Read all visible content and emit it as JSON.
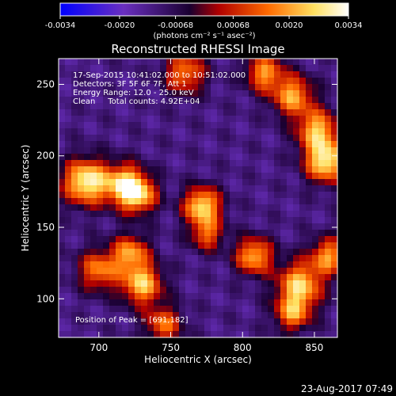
{
  "chart_data": {
    "type": "heatmap",
    "title": "Reconstructed RHESSI Image",
    "xlabel": "Heliocentric X (arcsec)",
    "ylabel": "Heliocentric Y (arcsec)",
    "xlim": [
      672,
      866
    ],
    "ylim": [
      73,
      268
    ],
    "x_ticks": [
      700,
      750,
      800,
      850
    ],
    "y_ticks": [
      100,
      150,
      200,
      250
    ],
    "colorbar": {
      "range": [
        -0.0034,
        0.0034
      ],
      "ticks": [
        "-0.0034",
        "-0.0020",
        "-0.00068",
        "0.00068",
        "0.0020",
        "0.0034"
      ],
      "units": "(photons cm⁻² s⁻¹ asec⁻²)",
      "colors": [
        "#0000ff",
        "#6a2fc0",
        "#1a0030",
        "#b00000",
        "#ff6a00",
        "#ffe060",
        "#ffffff"
      ]
    },
    "annotations": [
      "17-Sep-2015 10:41:02.000 to 10:51:02.000",
      "Detectors: 3F 5F 6F 7F, Att 1",
      "Energy Range: 12.0 - 25.0 keV",
      "Clean     Total counts: 4.92E+04"
    ],
    "peak_label": "Position of Peak = [691,182]",
    "peak": [
      691,
      182
    ],
    "sources": [
      {
        "x": 691,
        "y": 182,
        "amp": 0.0034,
        "sigma": 11
      },
      {
        "x": 718,
        "y": 180,
        "amp": 0.0026,
        "sigma": 10
      },
      {
        "x": 728,
        "y": 172,
        "amp": 0.002,
        "sigma": 9
      },
      {
        "x": 772,
        "y": 165,
        "amp": 0.003,
        "sigma": 9
      },
      {
        "x": 858,
        "y": 196,
        "amp": 0.0032,
        "sigma": 10
      },
      {
        "x": 852,
        "y": 218,
        "amp": 0.0024,
        "sigma": 10
      },
      {
        "x": 835,
        "y": 242,
        "amp": 0.0022,
        "sigma": 10
      },
      {
        "x": 815,
        "y": 258,
        "amp": 0.002,
        "sigma": 9
      },
      {
        "x": 760,
        "y": 258,
        "amp": 0.0018,
        "sigma": 10
      },
      {
        "x": 700,
        "y": 120,
        "amp": 0.0018,
        "sigma": 10
      },
      {
        "x": 730,
        "y": 110,
        "amp": 0.0026,
        "sigma": 10
      },
      {
        "x": 722,
        "y": 132,
        "amp": 0.002,
        "sigma": 9
      },
      {
        "x": 808,
        "y": 130,
        "amp": 0.0024,
        "sigma": 9
      },
      {
        "x": 840,
        "y": 110,
        "amp": 0.0026,
        "sigma": 11
      },
      {
        "x": 860,
        "y": 130,
        "amp": 0.002,
        "sigma": 9
      },
      {
        "x": 835,
        "y": 90,
        "amp": 0.0018,
        "sigma": 9
      },
      {
        "x": 775,
        "y": 145,
        "amp": 0.0014,
        "sigma": 8
      },
      {
        "x": 745,
        "y": 82,
        "amp": 0.0016,
        "sigma": 9
      }
    ],
    "background": -0.0012,
    "grid": false
  },
  "footer": {
    "date": "23-Aug-2017 07:49"
  }
}
